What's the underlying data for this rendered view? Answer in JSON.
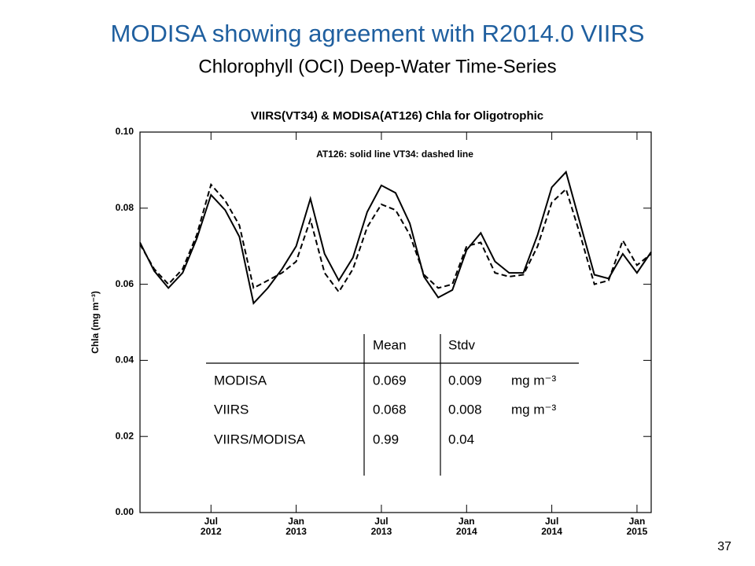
{
  "header": {
    "title": "MODISA showing agreement with R2014.0 VIIRS",
    "subtitle": "Chlorophyll (OCI) Deep-Water Time-Series"
  },
  "chart_data": {
    "type": "line",
    "title": "VIIRS(VT34) & MODISA(AT126)  Chla for Oligotrophic",
    "annotation": "AT126: solid line   VT34: dashed line",
    "ylabel": "Chla (mg m⁻³)",
    "x": [
      "2012-02",
      "2012-03",
      "2012-04",
      "2012-05",
      "2012-06",
      "2012-07",
      "2012-08",
      "2012-09",
      "2012-10",
      "2012-11",
      "2012-12",
      "2013-01",
      "2013-02",
      "2013-03",
      "2013-04",
      "2013-05",
      "2013-06",
      "2013-07",
      "2013-08",
      "2013-09",
      "2013-10",
      "2013-11",
      "2013-12",
      "2014-01",
      "2014-02",
      "2014-03",
      "2014-04",
      "2014-05",
      "2014-06",
      "2014-07",
      "2014-08",
      "2014-09",
      "2014-10",
      "2014-11",
      "2014-12",
      "2015-01",
      "2015-02"
    ],
    "series": [
      {
        "color": "#000000",
        "dash": false,
        "values": [
          0.071,
          0.0635,
          0.059,
          0.063,
          0.072,
          0.0835,
          0.0795,
          0.0725,
          0.055,
          0.059,
          0.064,
          0.07,
          0.0825,
          0.068,
          0.061,
          0.067,
          0.079,
          0.086,
          0.084,
          0.076,
          0.062,
          0.0565,
          0.0585,
          0.069,
          0.0735,
          0.066,
          0.063,
          0.063,
          0.073,
          0.0855,
          0.0895,
          0.076,
          0.0625,
          0.0615,
          0.068,
          0.063,
          0.0685
        ]
      },
      {
        "color": "#000000",
        "dash": true,
        "values": [
          0.0705,
          0.064,
          0.06,
          0.064,
          0.073,
          0.0862,
          0.082,
          0.0755,
          0.059,
          0.061,
          0.063,
          0.066,
          0.077,
          0.063,
          0.058,
          0.064,
          0.075,
          0.081,
          0.0795,
          0.073,
          0.0625,
          0.059,
          0.06,
          0.07,
          0.071,
          0.063,
          0.062,
          0.0625,
          0.07,
          0.0815,
          0.085,
          0.073,
          0.06,
          0.061,
          0.0715,
          0.065,
          0.068
        ]
      }
    ],
    "xlim": [
      "2012-02",
      "2015-02"
    ],
    "xticks": [
      {
        "value": "2012-07",
        "label": "Jul 2012"
      },
      {
        "value": "2013-01",
        "label": "Jan 2013"
      },
      {
        "value": "2013-07",
        "label": "Jul 2013"
      },
      {
        "value": "2014-01",
        "label": "Jan 2014"
      },
      {
        "value": "2014-07",
        "label": "Jul 2014"
      },
      {
        "value": "2015-01",
        "label": "Jan 2015"
      }
    ],
    "ylim": [
      0,
      0.1
    ],
    "yticks": [
      {
        "value": 0,
        "label": "0.00"
      },
      {
        "value": 0.02,
        "label": "0.02"
      },
      {
        "value": 0.04,
        "label": "0.04"
      },
      {
        "value": 0.06,
        "label": "0.06"
      },
      {
        "value": 0.08,
        "label": "0.08"
      },
      {
        "value": 0.1,
        "label": "0.10"
      }
    ],
    "table": {
      "header": [
        "Mean",
        "Stdv"
      ],
      "rows": [
        [
          "MODISA",
          "0.069",
          "0.009",
          "mg m⁻³"
        ],
        [
          "VIIRS",
          "0.068",
          "0.008",
          "mg m⁻³"
        ],
        [
          "VIIRS/MODISA",
          "0.99",
          "0.04"
        ]
      ]
    }
  },
  "footer": {
    "page": "37"
  }
}
